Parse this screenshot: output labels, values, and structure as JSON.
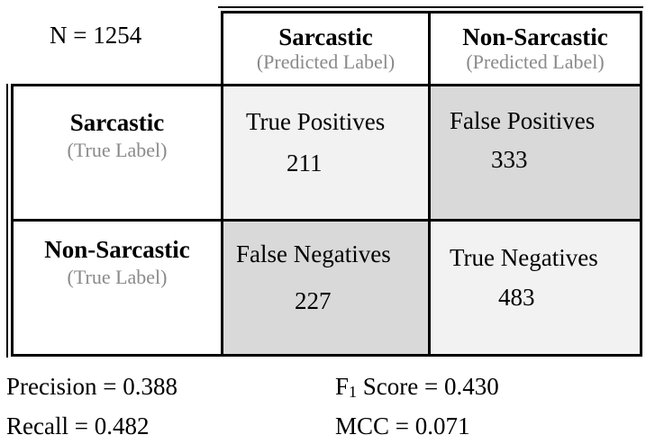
{
  "n_label": "N = 1254",
  "columns": [
    {
      "label": "Sarcastic",
      "sublabel": "(Predicted Label)"
    },
    {
      "label": "Non-Sarcastic",
      "sublabel": "(Predicted Label)"
    }
  ],
  "rows": [
    {
      "label": "Sarcastic",
      "sublabel": "(True Label)"
    },
    {
      "label": "Non-Sarcastic",
      "sublabel": "(True Label)"
    }
  ],
  "cells": {
    "tp": {
      "name": "True Positives",
      "value": "211"
    },
    "fp": {
      "name": "False Positives",
      "value": "333"
    },
    "fn": {
      "name": "False Negatives",
      "value": "227"
    },
    "tn": {
      "name": "True Negatives",
      "value": "483"
    }
  },
  "metrics": {
    "precision": "Precision = 0.388",
    "recall": "Recall = 0.482",
    "f1_prefix": "F",
    "f1_sub": "1",
    "f1_rest": " Score = 0.430",
    "mcc": "MCC = 0.071"
  },
  "colors": {
    "light_cell": "#f2f2f2",
    "dark_cell": "#d9d9d9",
    "sublabel_gray": "#8a8a8a"
  }
}
